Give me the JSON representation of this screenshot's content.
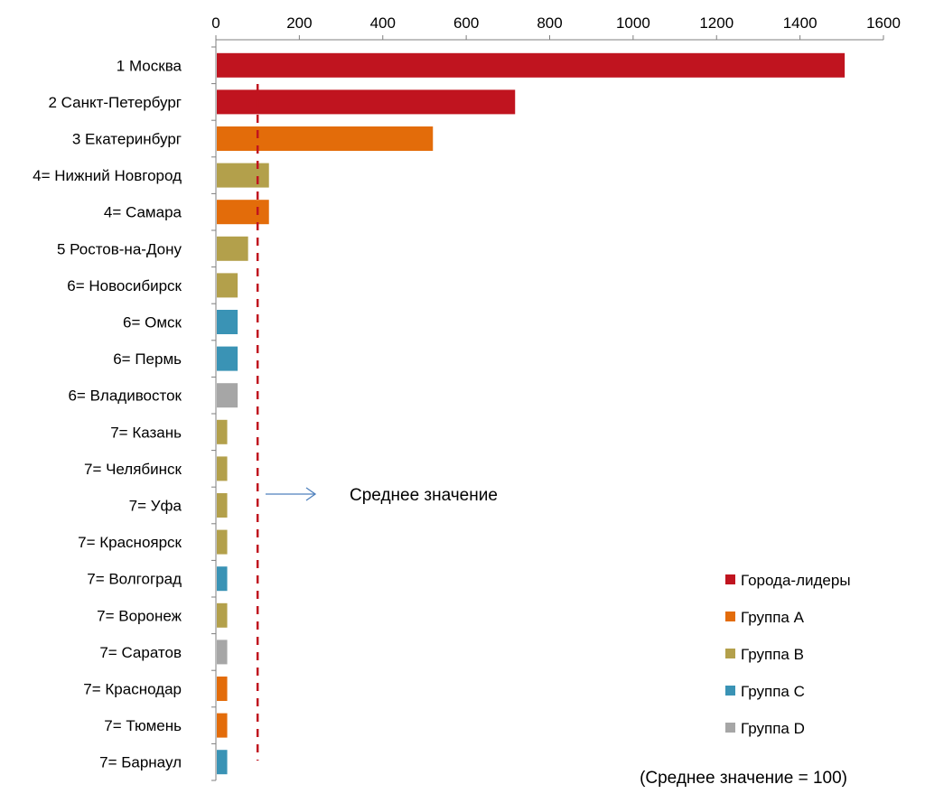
{
  "chart_data": {
    "type": "bar",
    "orientation": "horizontal",
    "categories": [
      "1 Москва",
      "2 Санкт-Петербург",
      "3 Екатеринбург",
      "4= Нижний Новгород",
      "4= Самара",
      "5 Ростов-на-Дону",
      "6= Новосибирск",
      "6= Омск",
      "6= Пермь",
      "6= Владивосток",
      "7= Казань",
      "7= Челябинск",
      "7= Уфа",
      "7= Красноярск",
      "7= Волгоград",
      "7= Воронеж",
      "7= Саратов",
      "7= Краснодар",
      "7= Тюмень",
      "7= Барнаул"
    ],
    "values": [
      1505,
      715,
      518,
      125,
      125,
      75,
      50,
      50,
      50,
      50,
      25,
      25,
      25,
      25,
      25,
      25,
      25,
      25,
      25,
      25
    ],
    "groups": [
      "Города-лидеры",
      "Города-лидеры",
      "Группа A",
      "Группа B",
      "Группа A",
      "Группа B",
      "Группа B",
      "Группа C",
      "Группа C",
      "Группа D",
      "Группа B",
      "Группа B",
      "Группа B",
      "Группа B",
      "Группа C",
      "Группа B",
      "Группа D",
      "Группа A",
      "Группа A",
      "Группа C"
    ],
    "xlim": [
      0,
      1600
    ],
    "xticks": [
      0,
      200,
      400,
      600,
      800,
      1000,
      1200,
      1400,
      1600
    ],
    "axis_position": "top",
    "grid": false,
    "legend_position": "bottom-right",
    "legend": [
      {
        "name": "Города-лидеры",
        "color": "#c0141f"
      },
      {
        "name": "Группа A",
        "color": "#e36c0a"
      },
      {
        "name": "Группа B",
        "color": "#b3a04b"
      },
      {
        "name": "Группа C",
        "color": "#3a93b5"
      },
      {
        "name": "Группа D",
        "color": "#a6a6a6"
      }
    ],
    "reference_line": {
      "value": 100,
      "label": "Среднее значение",
      "color": "#c0141f",
      "style": "dashed"
    },
    "note": "(Среднее значение = 100)"
  }
}
